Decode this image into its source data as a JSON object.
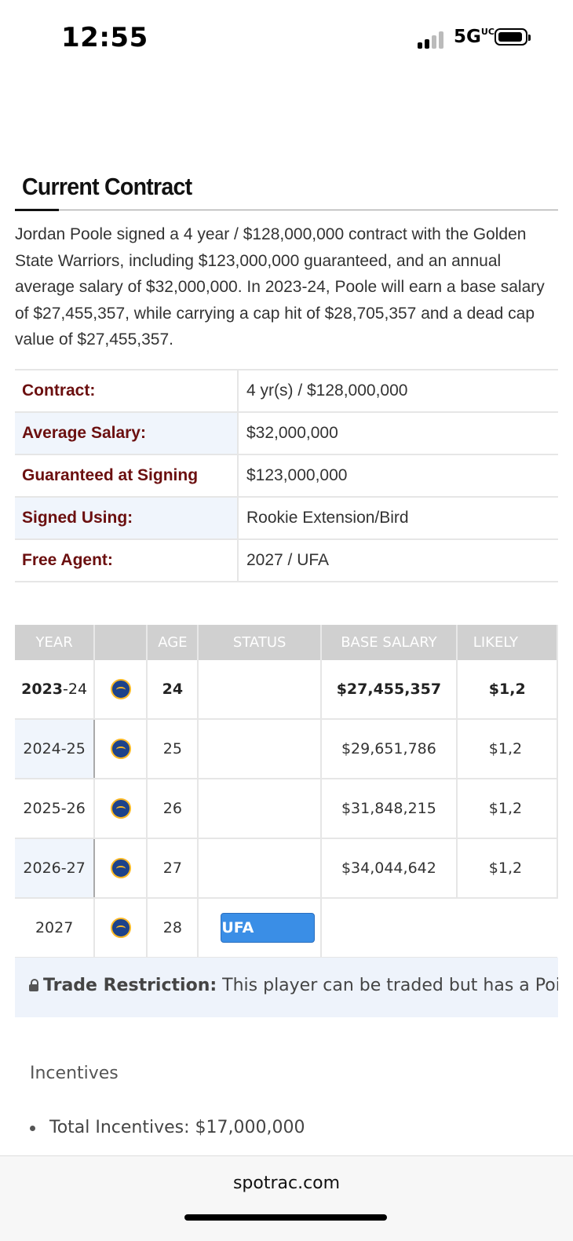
{
  "status_bar": {
    "time": "12:55",
    "network": "5G",
    "network_suffix": "UC"
  },
  "section": {
    "title": "Current Contract"
  },
  "summary": "Jordan Poole signed a 4 year / $128,000,000 contract with the Golden State Warriors, including $123,000,000 guaranteed, and an annual average salary of $32,000,000. In 2023-24, Poole will earn a base salary of $27,455,357, while carrying a cap hit of $28,705,357 and a dead cap value of $27,455,357.",
  "contract_info": [
    {
      "label": "Contract:",
      "value": "4 yr(s) / $128,000,000"
    },
    {
      "label": "Average Salary:",
      "value": "$32,000,000"
    },
    {
      "label": "Guaranteed at Signing",
      "value": "$123,000,000"
    },
    {
      "label": "Signed Using:",
      "value": "Rookie Extension/Bird"
    },
    {
      "label": "Free Agent:",
      "value": "2027 / UFA"
    }
  ],
  "contract_table": {
    "headers": [
      "YEAR",
      "",
      "AGE",
      "STATUS",
      "BASE SALARY",
      "LIKELY"
    ],
    "rows": [
      {
        "year_a": "2023",
        "year_b": "-24",
        "age": "24",
        "status": "",
        "base": "$27,455,357",
        "likely": "$1,2"
      },
      {
        "year_a": "2024",
        "year_b": "-25",
        "age": "25",
        "status": "",
        "base": "$29,651,786",
        "likely": "$1,2"
      },
      {
        "year_a": "2025",
        "year_b": "-26",
        "age": "26",
        "status": "",
        "base": "$31,848,215",
        "likely": "$1,2"
      },
      {
        "year_a": "2026",
        "year_b": "-27",
        "age": "27",
        "status": "",
        "base": "$34,044,642",
        "likely": "$1,2"
      },
      {
        "year_a": "2027",
        "year_b": "",
        "age": "28",
        "status": "UFA",
        "base": "",
        "likely": ""
      }
    ]
  },
  "trade_restriction": {
    "label": "Trade Restriction:",
    "text": " This player can be traded but has a Poison"
  },
  "incentives": {
    "title": "Incentives",
    "items": [
      "Total Incentives: $17,000,000"
    ]
  },
  "browser": {
    "url": "spotrac.com"
  }
}
